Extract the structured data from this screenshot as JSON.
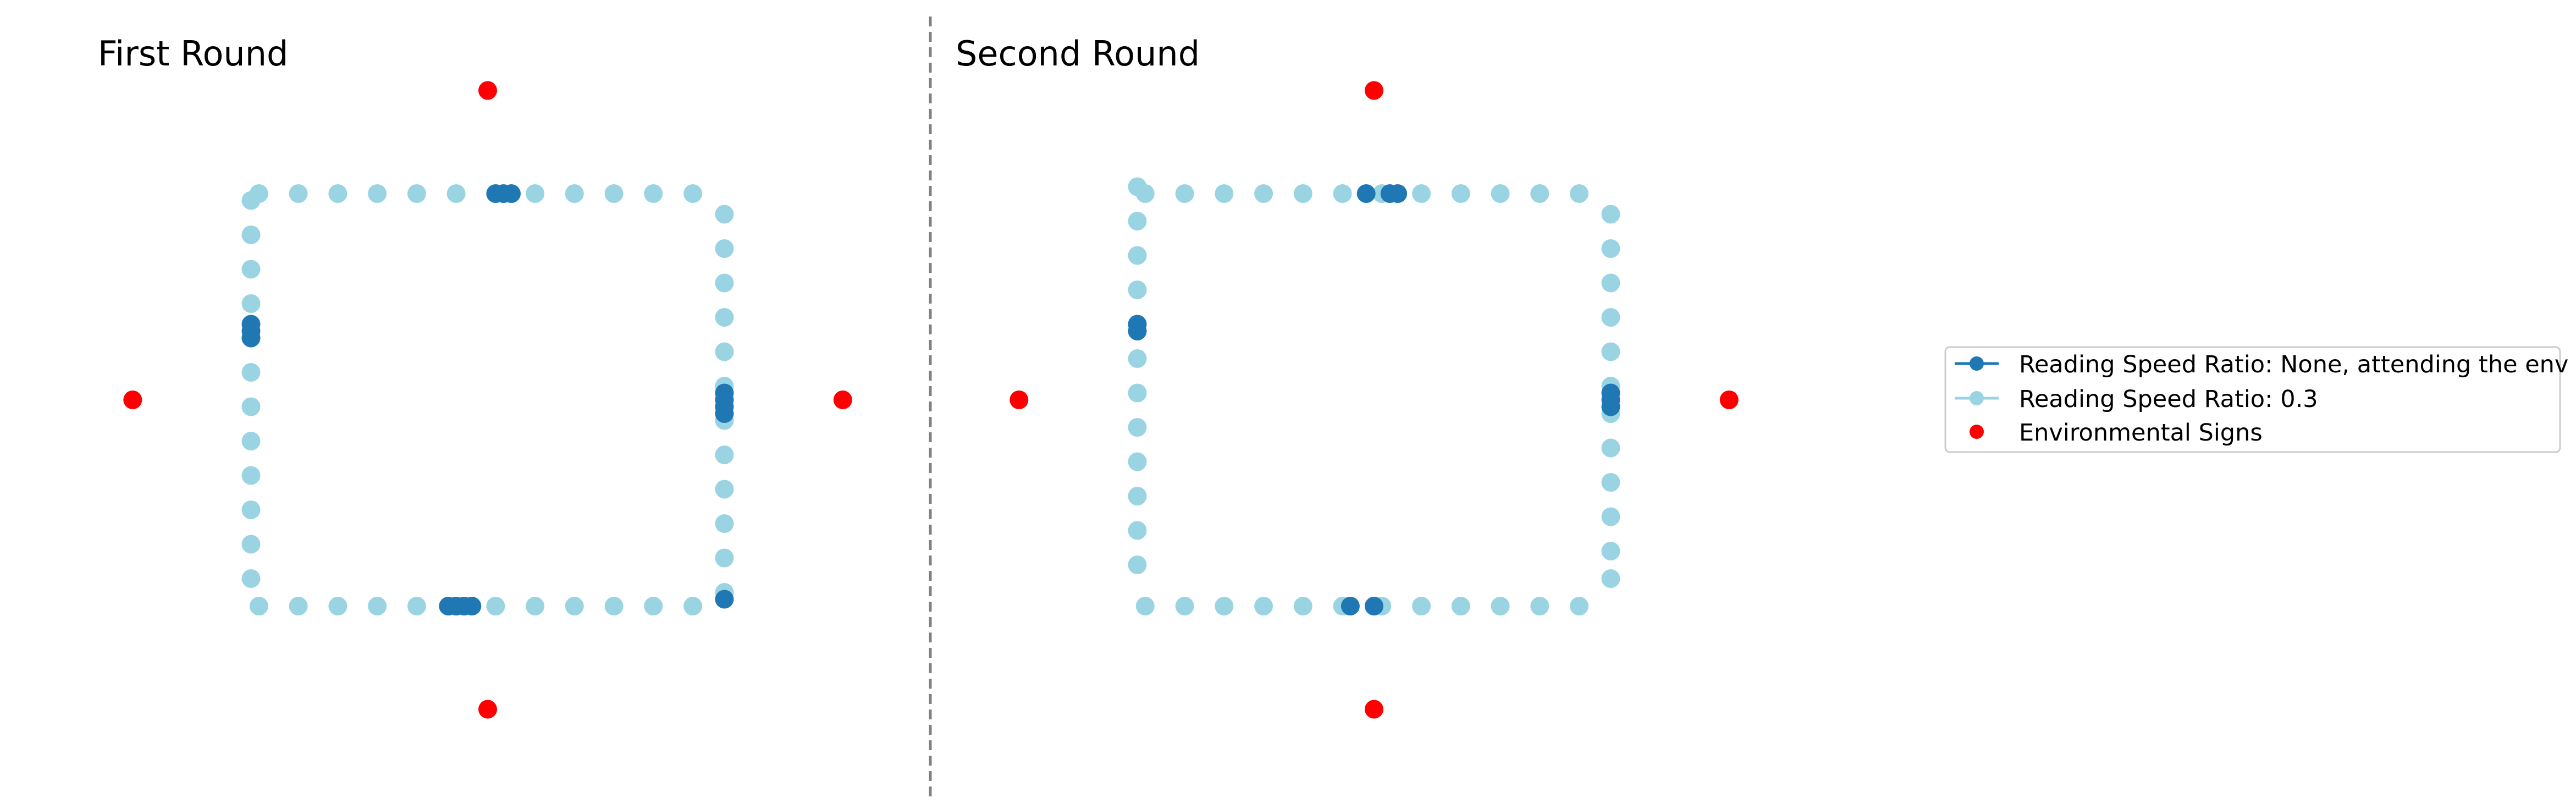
{
  "colors": {
    "attending": "#1f77b4",
    "ratio": "#9ad4e3",
    "signs": "#ff0000",
    "divider": "#808080",
    "legend_border": "#cccccc"
  },
  "chart_data": [
    {
      "type": "scatter",
      "title": "First Round",
      "series": [
        {
          "name": "Reading Speed Ratio: 0.3",
          "points": [
            [
              -2.9,
              3.0
            ],
            [
              -2.4,
              3.0
            ],
            [
              -1.9,
              3.0
            ],
            [
              -1.4,
              3.0
            ],
            [
              -0.9,
              3.0
            ],
            [
              -0.4,
              3.0
            ],
            [
              0.1,
              3.0
            ],
            [
              0.6,
              3.0
            ],
            [
              1.1,
              3.0
            ],
            [
              1.6,
              3.0
            ],
            [
              2.1,
              3.0
            ],
            [
              2.6,
              3.0
            ],
            [
              3.0,
              2.7
            ],
            [
              3.0,
              2.2
            ],
            [
              3.0,
              1.7
            ],
            [
              3.0,
              1.2
            ],
            [
              3.0,
              0.7
            ],
            [
              3.0,
              0.2
            ],
            [
              3.0,
              -0.3
            ],
            [
              3.0,
              -0.8
            ],
            [
              3.0,
              -1.3
            ],
            [
              3.0,
              -1.8
            ],
            [
              3.0,
              -2.3
            ],
            [
              3.0,
              -2.8
            ],
            [
              2.6,
              -3.0
            ],
            [
              2.1,
              -3.0
            ],
            [
              1.6,
              -3.0
            ],
            [
              1.1,
              -3.0
            ],
            [
              0.6,
              -3.0
            ],
            [
              0.1,
              -3.0
            ],
            [
              -0.4,
              -3.0
            ],
            [
              -0.9,
              -3.0
            ],
            [
              -1.4,
              -3.0
            ],
            [
              -1.9,
              -3.0
            ],
            [
              -2.4,
              -3.0
            ],
            [
              -2.9,
              -3.0
            ],
            [
              -3.0,
              -2.6
            ],
            [
              -3.0,
              -2.1
            ],
            [
              -3.0,
              -1.6
            ],
            [
              -3.0,
              -1.1
            ],
            [
              -3.0,
              -0.6
            ],
            [
              -3.0,
              -0.1
            ],
            [
              -3.0,
              0.4
            ],
            [
              -3.0,
              0.9
            ],
            [
              -3.0,
              1.4
            ],
            [
              -3.0,
              1.9
            ],
            [
              -3.0,
              2.4
            ],
            [
              -3.0,
              2.9
            ]
          ]
        },
        {
          "name": "Reading Speed Ratio: None, attending the env",
          "points": [
            [
              0.1,
              3.0
            ],
            [
              0.2,
              3.0
            ],
            [
              0.3,
              3.0
            ],
            [
              3.0,
              0.1
            ],
            [
              3.0,
              0.0
            ],
            [
              3.0,
              -0.1
            ],
            [
              3.0,
              -0.2
            ],
            [
              3.0,
              -2.9
            ],
            [
              -0.5,
              -3.0
            ],
            [
              -0.4,
              -3.0
            ],
            [
              -0.3,
              -3.0
            ],
            [
              -0.2,
              -3.0
            ],
            [
              -3.0,
              0.9
            ],
            [
              -3.0,
              1.0
            ],
            [
              -3.0,
              1.1
            ]
          ]
        },
        {
          "name": "Environmental Signs",
          "points": [
            [
              0,
              4.5
            ],
            [
              4.5,
              0
            ],
            [
              0,
              -4.5
            ],
            [
              -4.5,
              0
            ]
          ]
        }
      ]
    },
    {
      "type": "scatter",
      "title": "Second Round",
      "series": [
        {
          "name": "Reading Speed Ratio: 0.3",
          "points": [
            [
              -2.9,
              3.0
            ],
            [
              -2.4,
              3.0
            ],
            [
              -1.9,
              3.0
            ],
            [
              -1.4,
              3.0
            ],
            [
              -0.9,
              3.0
            ],
            [
              -0.4,
              3.0
            ],
            [
              0.1,
              3.0
            ],
            [
              0.6,
              3.0
            ],
            [
              1.1,
              3.0
            ],
            [
              1.6,
              3.0
            ],
            [
              2.1,
              3.0
            ],
            [
              2.6,
              3.0
            ],
            [
              3.0,
              2.7
            ],
            [
              3.0,
              2.2
            ],
            [
              3.0,
              1.7
            ],
            [
              3.0,
              1.2
            ],
            [
              3.0,
              0.7
            ],
            [
              3.0,
              0.2
            ],
            [
              3.0,
              -0.2
            ],
            [
              3.0,
              -0.7
            ],
            [
              3.0,
              -1.2
            ],
            [
              3.0,
              -1.7
            ],
            [
              3.0,
              -2.2
            ],
            [
              3.0,
              -2.6
            ],
            [
              2.6,
              -3.0
            ],
            [
              2.1,
              -3.0
            ],
            [
              1.6,
              -3.0
            ],
            [
              1.1,
              -3.0
            ],
            [
              0.6,
              -3.0
            ],
            [
              0.1,
              -3.0
            ],
            [
              -0.4,
              -3.0
            ],
            [
              -0.9,
              -3.0
            ],
            [
              -1.4,
              -3.0
            ],
            [
              -1.9,
              -3.0
            ],
            [
              -2.4,
              -3.0
            ],
            [
              -2.9,
              -3.0
            ],
            [
              -3.0,
              -2.4
            ],
            [
              -3.0,
              -1.9
            ],
            [
              -3.0,
              -1.4
            ],
            [
              -3.0,
              -0.9
            ],
            [
              -3.0,
              -0.4
            ],
            [
              -3.0,
              0.1
            ],
            [
              -3.0,
              0.6
            ],
            [
              -3.0,
              1.1
            ],
            [
              -3.0,
              1.6
            ],
            [
              -3.0,
              2.1
            ],
            [
              -3.0,
              2.6
            ],
            [
              -3.0,
              3.1
            ]
          ]
        },
        {
          "name": "Reading Speed Ratio: None, attending the env",
          "points": [
            [
              -0.1,
              3.0
            ],
            [
              0.2,
              3.0
            ],
            [
              0.3,
              3.0
            ],
            [
              3.0,
              0.1
            ],
            [
              3.0,
              0.0
            ],
            [
              3.0,
              -0.1
            ],
            [
              -0.3,
              -3.0
            ],
            [
              0.0,
              -3.0
            ],
            [
              -3.0,
              1.0
            ],
            [
              -3.0,
              1.1
            ]
          ]
        },
        {
          "name": "Environmental Signs",
          "points": [
            [
              0,
              4.5
            ],
            [
              4.5,
              0
            ],
            [
              0,
              -4.5
            ],
            [
              -4.5,
              0
            ]
          ]
        }
      ]
    }
  ],
  "legend": {
    "placement": "center-right",
    "entries": [
      "Reading Speed Ratio: None, attending the env",
      "Reading Speed Ratio: 0.3",
      "Environmental Signs"
    ]
  }
}
